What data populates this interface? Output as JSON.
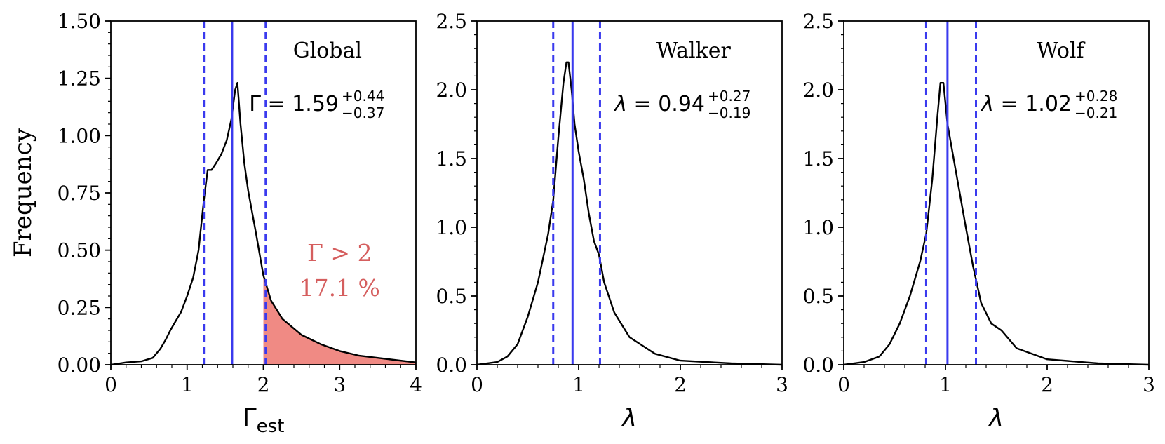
{
  "chart_data": [
    {
      "type": "line",
      "panel": "Global",
      "title": "Global",
      "xlabel": "Γ",
      "xlabel_sub": "est",
      "ylabel": "Frequency",
      "xlim": [
        0,
        4
      ],
      "ylim": [
        0,
        1.5
      ],
      "xticks": [
        "0",
        "1",
        "2",
        "3",
        "4"
      ],
      "yticks": [
        "0.00",
        "0.25",
        "0.50",
        "0.75",
        "1.00",
        "1.25",
        "1.50"
      ],
      "median": 1.59,
      "lower": 1.22,
      "upper": 2.03,
      "estimate": {
        "symbol": "Γ",
        "value": "1.59",
        "plus": "+0.44",
        "minus": "−0.37"
      },
      "shaded_region": {
        "from": 2.0,
        "label_line1": "Γ > 2",
        "label_line2": "17.1 %"
      },
      "x": [
        0,
        0.2,
        0.4,
        0.55,
        0.65,
        0.72,
        0.78,
        0.85,
        0.92,
        1.0,
        1.08,
        1.15,
        1.22,
        1.27,
        1.32,
        1.38,
        1.45,
        1.52,
        1.58,
        1.63,
        1.66,
        1.7,
        1.75,
        1.8,
        1.9,
        2.0,
        2.1,
        2.25,
        2.5,
        2.75,
        3.0,
        3.25,
        3.5,
        3.75,
        4.0
      ],
      "y": [
        0,
        0.01,
        0.015,
        0.03,
        0.07,
        0.11,
        0.15,
        0.19,
        0.23,
        0.3,
        0.38,
        0.5,
        0.72,
        0.85,
        0.85,
        0.88,
        0.92,
        0.98,
        1.07,
        1.2,
        1.23,
        1.05,
        0.88,
        0.76,
        0.58,
        0.39,
        0.28,
        0.2,
        0.13,
        0.09,
        0.06,
        0.04,
        0.03,
        0.02,
        0.01
      ]
    },
    {
      "type": "line",
      "panel": "Walker",
      "title": "Walker",
      "xlabel": "λ",
      "ylabel": "",
      "xlim": [
        0,
        3
      ],
      "ylim": [
        0,
        2.5
      ],
      "xticks": [
        "0",
        "1",
        "2",
        "3"
      ],
      "yticks": [
        "0.0",
        "0.5",
        "1.0",
        "1.5",
        "2.0",
        "2.5"
      ],
      "median": 0.94,
      "lower": 0.75,
      "upper": 1.21,
      "estimate": {
        "symbol": "λ",
        "value": "0.94",
        "plus": "+0.27",
        "minus": "−0.19"
      },
      "x": [
        0,
        0.2,
        0.3,
        0.4,
        0.5,
        0.6,
        0.7,
        0.75,
        0.8,
        0.85,
        0.88,
        0.9,
        0.93,
        0.96,
        1.0,
        1.05,
        1.1,
        1.15,
        1.2,
        1.25,
        1.35,
        1.5,
        1.75,
        2.0,
        2.5,
        3.0
      ],
      "y": [
        0,
        0.02,
        0.06,
        0.15,
        0.35,
        0.6,
        0.95,
        1.2,
        1.65,
        2.05,
        2.2,
        2.2,
        2.0,
        1.75,
        1.55,
        1.35,
        1.1,
        0.9,
        0.8,
        0.6,
        0.38,
        0.2,
        0.08,
        0.03,
        0.01,
        0
      ]
    },
    {
      "type": "line",
      "panel": "Wolf",
      "title": "Wolf",
      "xlabel": "λ",
      "ylabel": "",
      "xlim": [
        0,
        3
      ],
      "ylim": [
        0,
        2.5
      ],
      "xticks": [
        "0",
        "1",
        "2",
        "3"
      ],
      "yticks": [
        "0.0",
        "0.5",
        "1.0",
        "1.5",
        "2.0",
        "2.5"
      ],
      "median": 1.02,
      "lower": 0.81,
      "upper": 1.3,
      "estimate": {
        "symbol": "λ",
        "value": "1.02",
        "plus": "+0.28",
        "minus": "−0.21"
      },
      "x": [
        0,
        0.2,
        0.35,
        0.45,
        0.55,
        0.65,
        0.75,
        0.81,
        0.87,
        0.92,
        0.95,
        0.98,
        1.02,
        1.08,
        1.14,
        1.2,
        1.27,
        1.3,
        1.35,
        1.45,
        1.55,
        1.7,
        2.0,
        2.5,
        3.0
      ],
      "y": [
        0,
        0.02,
        0.06,
        0.15,
        0.3,
        0.5,
        0.75,
        0.95,
        1.35,
        1.8,
        2.05,
        2.05,
        1.75,
        1.5,
        1.25,
        1.0,
        0.72,
        0.62,
        0.45,
        0.3,
        0.25,
        0.12,
        0.04,
        0.01,
        0
      ]
    }
  ]
}
